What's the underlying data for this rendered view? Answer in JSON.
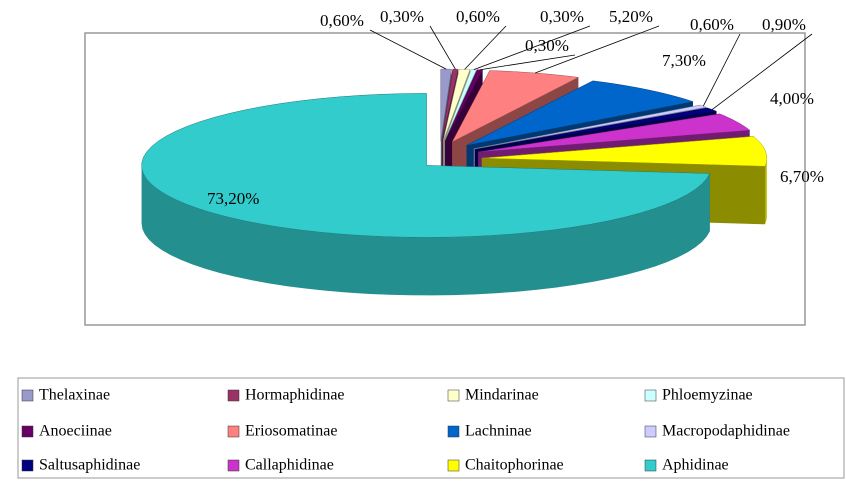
{
  "chart_data": {
    "type": "pie3d",
    "categories": [
      "Thelaxinae",
      "Hormaphidinae",
      "Mindarinae",
      "Phloemyzinae",
      "Anoeciinae",
      "Eriosomatinae",
      "Lachninae",
      "Macropodaphidinae",
      "Saltusaphidinae",
      "Callaphidinae",
      "Chaitophorinae",
      "Aphidinae"
    ],
    "values": [
      0.6,
      0.3,
      0.6,
      0.3,
      0.3,
      5.2,
      7.3,
      0.6,
      0.9,
      4.0,
      6.7,
      73.2
    ],
    "value_labels": [
      "0,60%",
      "0,30%",
      "0,60%",
      "0,30%",
      "0,30%",
      "5,20%",
      "7,30%",
      "0,60%",
      "0,90%",
      "4,00%",
      "6,70%",
      "73,20%"
    ],
    "colors": [
      "#9999cc",
      "#993366",
      "#ffffcc",
      "#ccffff",
      "#660066",
      "#ff8080",
      "#0066cc",
      "#ccccff",
      "#000080",
      "#cc33cc",
      "#ffff00",
      "#33cccc"
    ],
    "legend": "bottom"
  }
}
